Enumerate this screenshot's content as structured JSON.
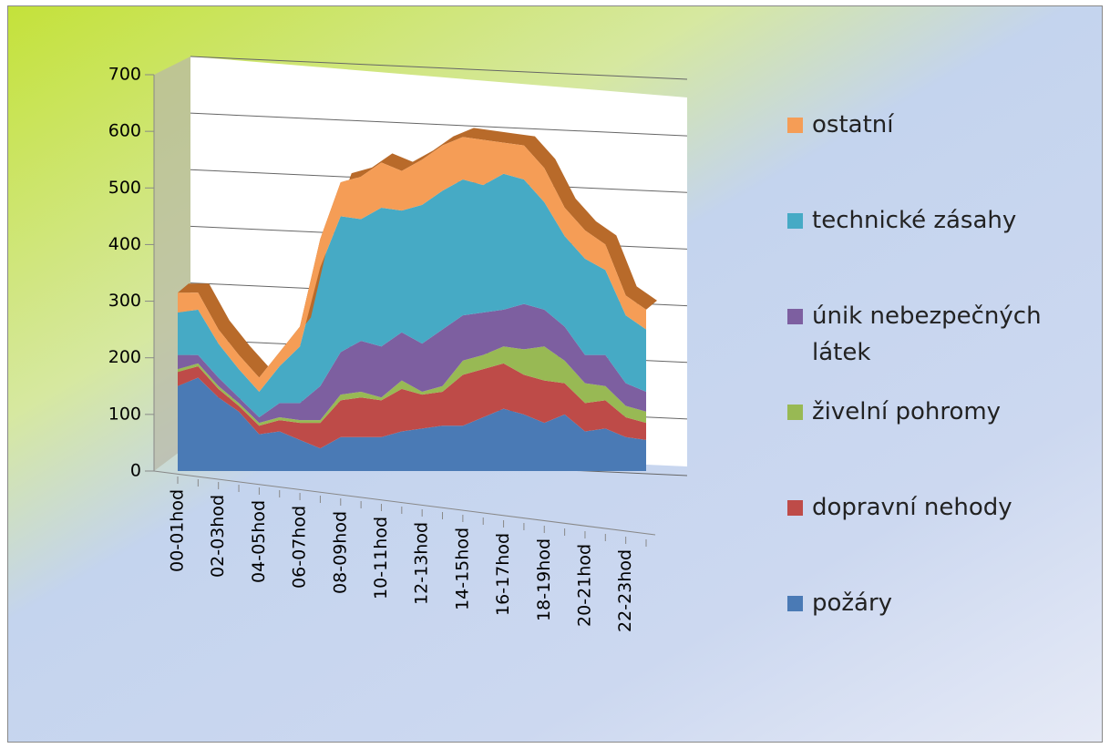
{
  "chart_data": {
    "type": "area",
    "categories": [
      "00-01hod",
      null,
      "02-03hod",
      null,
      "04-05hod",
      null,
      "06-07hod",
      null,
      "08-09hod",
      null,
      "10-11hod",
      null,
      "12-13hod",
      null,
      "14-15hod",
      null,
      "16-17hod",
      null,
      "18-19hod",
      null,
      "20-21hod",
      null,
      "22-23hod",
      null
    ],
    "ylim": [
      0,
      700
    ],
    "yticks": [
      0,
      100,
      200,
      300,
      400,
      500,
      600,
      700
    ],
    "grid": true,
    "stacked": true,
    "legend": "right",
    "series": [
      {
        "name": "požáry",
        "color": "#4a7ab5",
        "values": [
          150,
          165,
          130,
          105,
          65,
          70,
          55,
          40,
          60,
          60,
          60,
          70,
          75,
          80,
          80,
          95,
          110,
          100,
          85,
          100,
          70,
          75,
          60,
          55
        ]
      },
      {
        "name": "dopravní nehody",
        "color": "#be4b48",
        "values": [
          25,
          20,
          15,
          10,
          15,
          20,
          30,
          45,
          65,
          70,
          65,
          75,
          60,
          60,
          90,
          85,
          80,
          70,
          75,
          55,
          50,
          50,
          35,
          30
        ]
      },
      {
        "name": "živelní pohromy",
        "color": "#98b954",
        "values": [
          5,
          5,
          5,
          5,
          5,
          5,
          5,
          5,
          10,
          10,
          5,
          15,
          5,
          10,
          25,
          25,
          30,
          45,
          60,
          40,
          35,
          25,
          20,
          20
        ]
      },
      {
        "name": "únik nebezpečných látek",
        "color": "#7d5fa0",
        "values": [
          25,
          15,
          15,
          10,
          10,
          25,
          30,
          60,
          75,
          90,
          90,
          85,
          85,
          100,
          80,
          75,
          65,
          80,
          65,
          60,
          50,
          55,
          40,
          35
        ]
      },
      {
        "name": "technické zásahy",
        "color": "#46aac5",
        "values": [
          75,
          80,
          60,
          50,
          45,
          65,
          100,
          210,
          240,
          215,
          245,
          215,
          245,
          245,
          240,
          225,
          240,
          220,
          190,
          160,
          170,
          150,
          120,
          110
        ]
      },
      {
        "name": "ostatní",
        "color": "#f59d56",
        "values": [
          35,
          30,
          25,
          25,
          25,
          25,
          35,
          50,
          60,
          75,
          80,
          70,
          80,
          80,
          75,
          80,
          55,
          60,
          60,
          50,
          50,
          45,
          35,
          35
        ]
      }
    ]
  }
}
